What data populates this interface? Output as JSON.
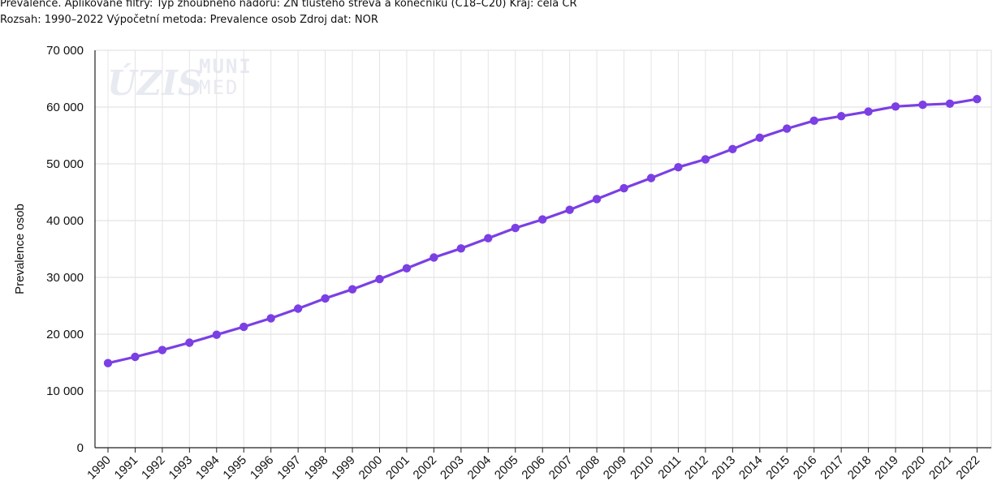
{
  "header": {
    "line1": "Prevalence. Aplikované filtry: Typ zhoubného nádoru: ZN tlustého střeva a konečníku (C18–C20) Kraj: celá ČR",
    "line2": "Rozsah: 1990–2022 Výpočetní metoda: Prevalence osob Zdroj dat: NOR"
  },
  "watermark": {
    "logo1": "ÚZIS",
    "logo2_top": "MUNI",
    "logo2_bottom": "MED"
  },
  "chart_data": {
    "type": "line",
    "title": "",
    "xlabel": "",
    "ylabel": "Prevalence osob",
    "ylim": [
      0,
      70000
    ],
    "y_ticks": [
      0,
      10000,
      20000,
      30000,
      40000,
      50000,
      60000,
      70000
    ],
    "y_tick_labels": [
      "0",
      "10 000",
      "20 000",
      "30 000",
      "40 000",
      "50 000",
      "60 000",
      "70 000"
    ],
    "grid": true,
    "legend": "none",
    "line_color": "#7b3fe4",
    "categories": [
      "1990",
      "1991",
      "1992",
      "1993",
      "1994",
      "1995",
      "1996",
      "1997",
      "1998",
      "1999",
      "2000",
      "2001",
      "2002",
      "2003",
      "2004",
      "2005",
      "2006",
      "2007",
      "2008",
      "2009",
      "2010",
      "2011",
      "2012",
      "2013",
      "2014",
      "2015",
      "2016",
      "2017",
      "2018",
      "2019",
      "2020",
      "2021",
      "2022"
    ],
    "series": [
      {
        "values": [
          14900,
          16000,
          17200,
          18500,
          19900,
          21300,
          22800,
          24500,
          26300,
          27900,
          29700,
          31600,
          33500,
          35100,
          36900,
          38700,
          40200,
          41900,
          43800,
          45700,
          47500,
          49400,
          50800,
          52600,
          54600,
          56200,
          57600,
          58400,
          59200,
          60100,
          60400,
          60600,
          61400
        ]
      }
    ]
  }
}
